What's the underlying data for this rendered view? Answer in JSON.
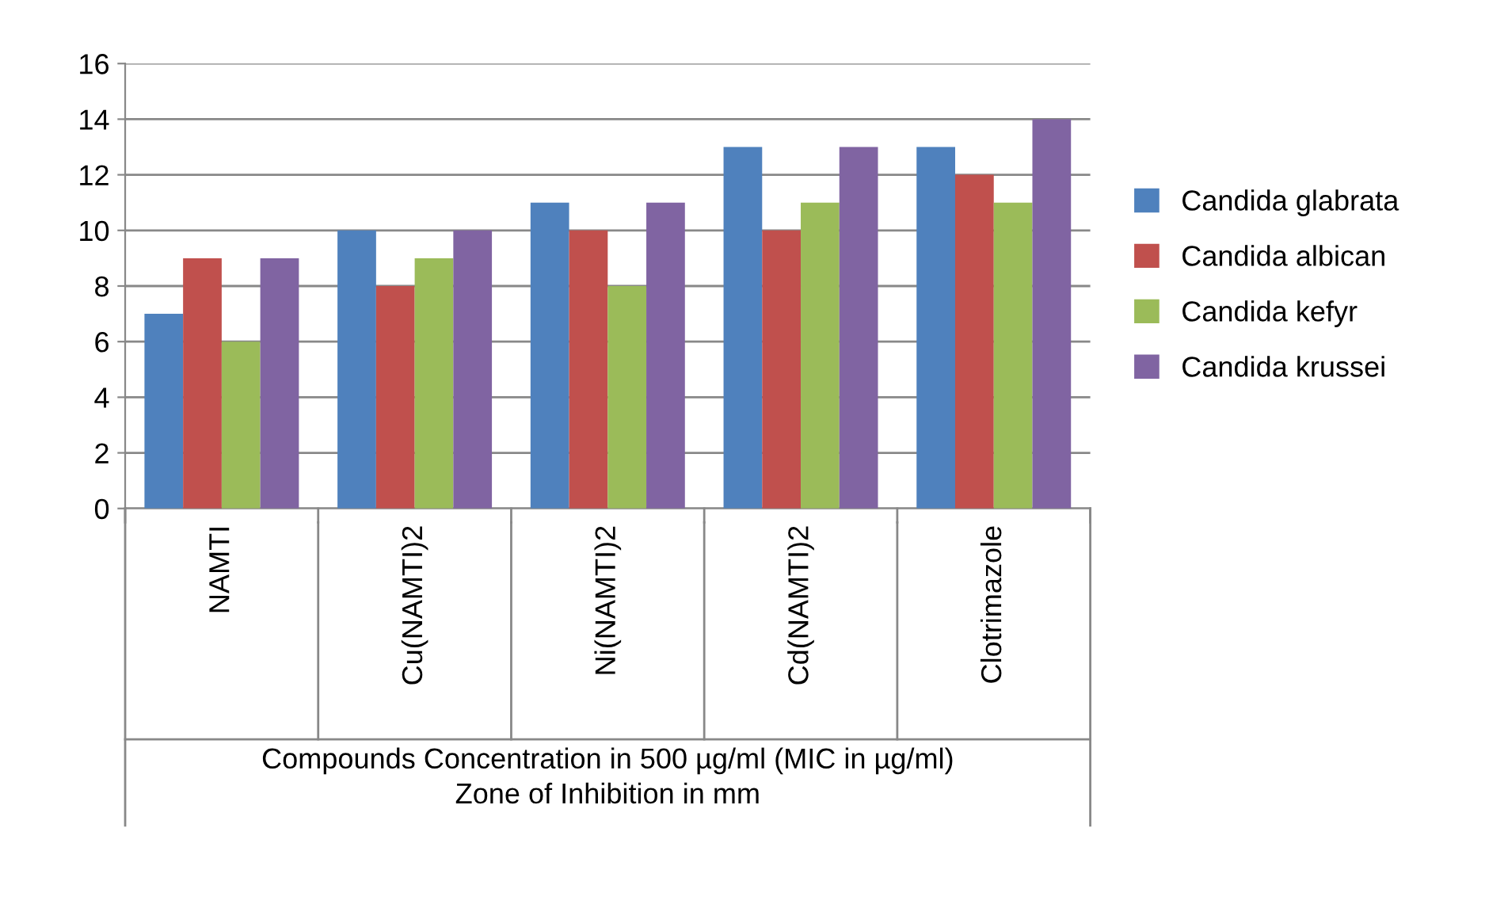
{
  "chart_data": {
    "type": "bar",
    "categories": [
      "NAMTI",
      "Cu(NAMTI)2",
      "Ni(NAMTI)2",
      "Cd(NAMTI)2",
      "Clotrimazole"
    ],
    "series": [
      {
        "name": "Candida glabrata",
        "color": "#4f81bd",
        "values": [
          7,
          10,
          11,
          13,
          13
        ]
      },
      {
        "name": "Candida albican",
        "color": "#c0504d",
        "values": [
          9,
          8,
          10,
          10,
          12
        ]
      },
      {
        "name": "Candida kefyr",
        "color": "#9bbb59",
        "values": [
          6,
          9,
          8,
          11,
          11
        ]
      },
      {
        "name": "Candida krussei",
        "color": "#8064a2",
        "values": [
          9,
          10,
          11,
          13,
          14
        ]
      }
    ],
    "xlabel": "Compounds Concentration in 500 µg/ml (MIC in µg/ml)\nZone of Inhibition in mm",
    "ylim": [
      0,
      16
    ],
    "yticks": [
      0,
      2,
      4,
      6,
      8,
      10,
      12,
      14,
      16
    ],
    "grid": "y",
    "legend": "right"
  }
}
